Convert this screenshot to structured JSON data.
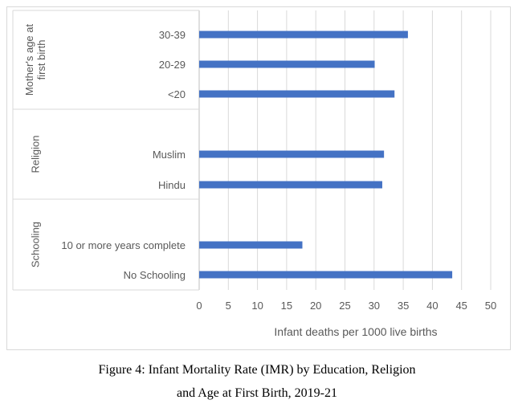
{
  "chart_data": {
    "type": "bar",
    "orientation": "horizontal",
    "xlabel": "Infant deaths per 1000 live births",
    "xlim": [
      0,
      50
    ],
    "x_ticks": [
      "0",
      "5",
      "10",
      "15",
      "20",
      "25",
      "30",
      "35",
      "40",
      "45",
      "50"
    ],
    "grid": true,
    "bar_color": "#4472c4",
    "groups": [
      {
        "name": "Mother's age at first birth",
        "name_lines": [
          "Mother's age at",
          "first birth"
        ],
        "categories": [
          "30-39",
          "20-29",
          "<20"
        ],
        "values": [
          35.8,
          30.1,
          33.5
        ]
      },
      {
        "name": "Religion",
        "name_lines": [
          "Religion"
        ],
        "categories": [
          "Muslim",
          "Hindu"
        ],
        "values": [
          31.7,
          31.4
        ]
      },
      {
        "name": "Schooling",
        "name_lines": [
          "Schooling"
        ],
        "categories": [
          "10 or more years complete",
          "No Schooling"
        ],
        "values": [
          17.7,
          43.4
        ]
      }
    ]
  },
  "caption": {
    "line1": "Figure 4: Infant Mortality Rate (IMR) by Education, Religion",
    "line2": "and Age at First Birth, 2019-21"
  }
}
